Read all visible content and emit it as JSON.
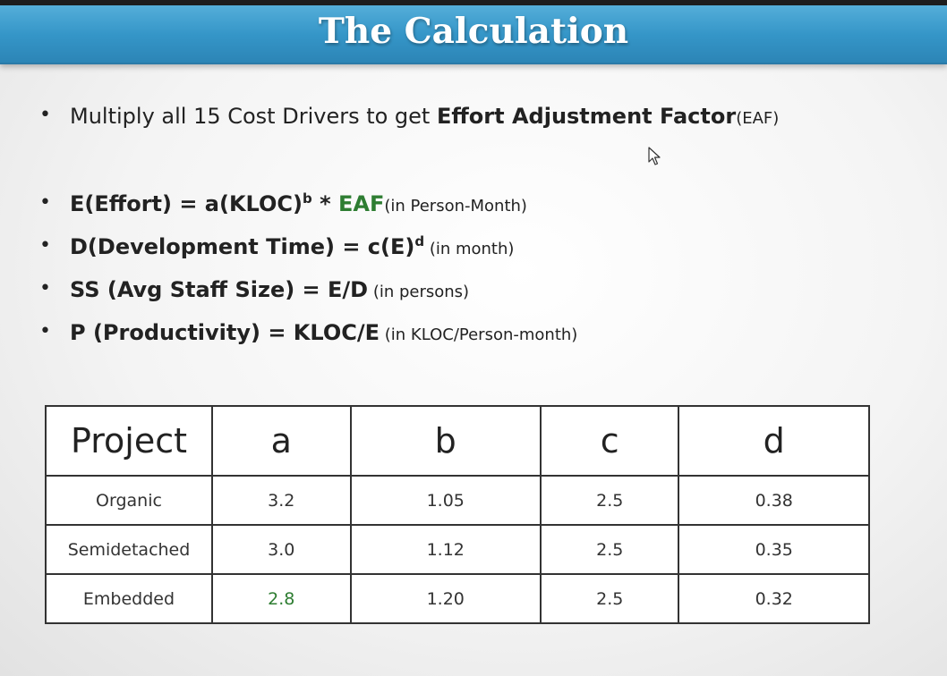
{
  "slide": {
    "title": "The Calculation",
    "bullet1": {
      "text": "Multiply all 15 Cost Drivers to get ",
      "bold": "Effort Adjustment Factor",
      "small": "(EAF)"
    },
    "bullet2": {
      "bold_main": "E(Effort) = a(KLOC)",
      "sup": "b",
      "bold_op": " * ",
      "green": "EAF",
      "small": "(in Person-Month)"
    },
    "bullet3": {
      "bold_main": "D(Development Time) = c(E)",
      "sup": "d",
      "small": " (in month)"
    },
    "bullet4": {
      "bold_main": "SS (Avg Staff Size) = E/D",
      "small": " (in persons)"
    },
    "bullet5": {
      "bold_main": "P (Productivity) = KLOC/E",
      "small": " (in KLOC/Person-month)"
    }
  },
  "table": {
    "headers": [
      "Project",
      "a",
      "b",
      "c",
      "d"
    ],
    "rows": [
      [
        "Organic",
        "3.2",
        "1.05",
        "2.5",
        "0.38"
      ],
      [
        "Semidetached",
        "3.0",
        "1.12",
        "2.5",
        "0.35"
      ],
      [
        "Embedded",
        "2.8",
        "1.20",
        "2.5",
        "0.32"
      ]
    ]
  },
  "colors": {
    "title_bar": "#3596c8",
    "highlight_green": "#2e7d32"
  },
  "icons": {
    "cursor": "mouse-pointer-icon"
  }
}
